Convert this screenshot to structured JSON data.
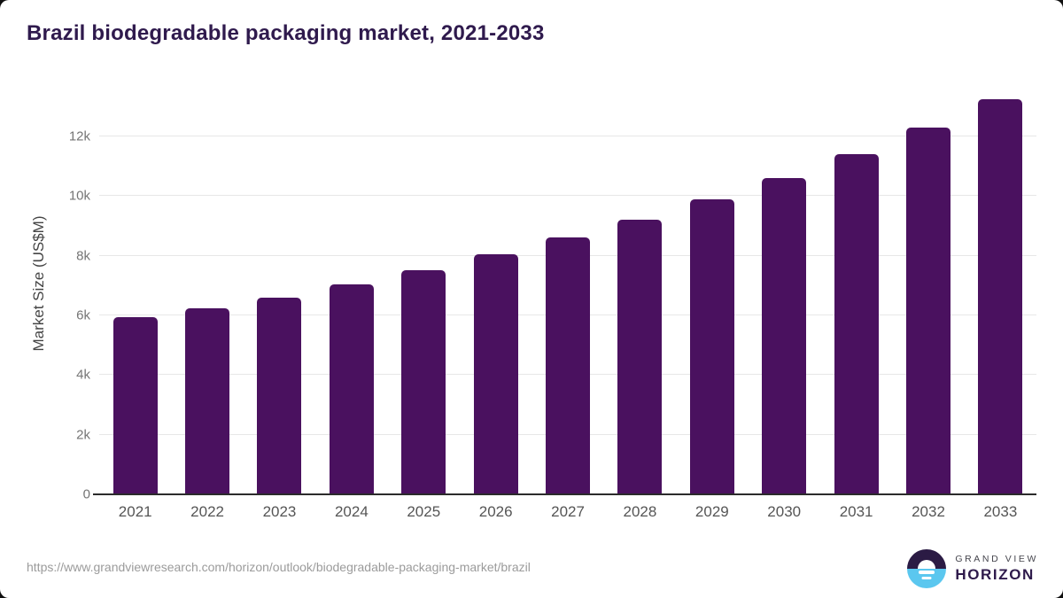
{
  "page": {
    "title": "Brazil biodegradable packaging market, 2021-2033",
    "source_url": "https://www.grandviewresearch.com/horizon/outlook/biodegradable-packaging-market/brazil"
  },
  "logo": {
    "line1": "GRAND VIEW",
    "line2": "HORIZON"
  },
  "colors": {
    "bar": "#4a115f",
    "title": "#2f1a4d",
    "gridline": "#e7e7e7",
    "axis_line": "#2b2b2b",
    "tick_text": "#757575",
    "x_label_text": "#555555",
    "url_text": "#9b9b9b",
    "logo_dark": "#2b1b44",
    "logo_blue": "#5bc7ef"
  },
  "chart_data": {
    "type": "bar",
    "title": "Brazil biodegradable packaging market, 2021-2033",
    "categories": [
      "2021",
      "2022",
      "2023",
      "2024",
      "2025",
      "2026",
      "2027",
      "2028",
      "2029",
      "2030",
      "2031",
      "2032",
      "2033"
    ],
    "values": [
      5950,
      6250,
      6600,
      7050,
      7500,
      8050,
      8600,
      9200,
      9900,
      10600,
      11400,
      12300,
      13250
    ],
    "xlabel": "",
    "ylabel": "Market Size (US$M)",
    "ylim": [
      0,
      13600
    ],
    "yticks": [
      {
        "value": 0,
        "label": "0"
      },
      {
        "value": 2000,
        "label": "2k"
      },
      {
        "value": 4000,
        "label": "4k"
      },
      {
        "value": 6000,
        "label": "6k"
      },
      {
        "value": 8000,
        "label": "8k"
      },
      {
        "value": 10000,
        "label": "10k"
      },
      {
        "value": 12000,
        "label": "12k"
      }
    ],
    "grid": true,
    "legend_position": "none"
  }
}
